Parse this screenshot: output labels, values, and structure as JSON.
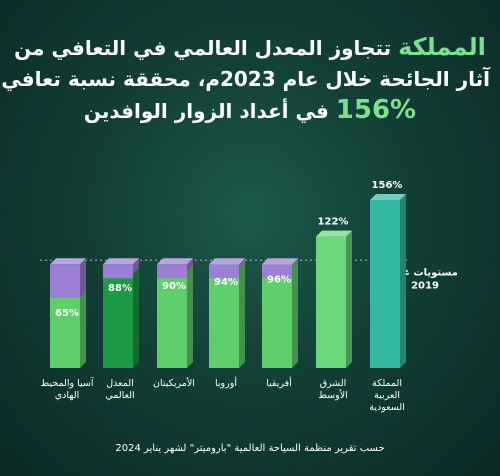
{
  "headline": {
    "line1_highlight": "المملكة",
    "line1_rest": " تتجاوز المعدل العالمي في التعافي من",
    "line2": "آثار الجائحة خلال عام 2023م، محققة نسبة تعافي",
    "line3_number": "156%",
    "line3_rest": " في أعداد الزوار الوافدين"
  },
  "footer": {
    "source": "حسب تقرير منظمة السياحة العالمية \"باروميتر\" لشهر يناير 2024"
  },
  "chart_data": {
    "type": "bar",
    "categories": [
      "المملكة العربية السعودية",
      "الشرق الأوسط",
      "أفريقيا",
      "أوروبا",
      "الأمريكيتان",
      "المعدل العالمي",
      "آسيا والمحيط الهادي"
    ],
    "category_lines": [
      [
        "المملكة",
        "العربية",
        "السعودية"
      ],
      [
        "الشرق",
        "الأوسط"
      ],
      [
        "أفريقيا"
      ],
      [
        "أوروبا"
      ],
      [
        "الأمريكيتان"
      ],
      [
        "المعدل",
        "العالمي"
      ],
      [
        "آسيا والمحيط",
        "الهادي"
      ]
    ],
    "values": [
      156,
      122,
      96,
      94,
      90,
      88,
      65
    ],
    "labels": [
      "156%",
      "122%",
      "96%",
      "94%",
      "90%",
      "88%",
      "65%"
    ],
    "reference_line": {
      "value": 100,
      "label_line1": "مستويات عام",
      "label_line2": "2019"
    },
    "ylim": [
      0,
      156
    ],
    "colors": {
      "bar_saudi": "#36b9a3",
      "bar_middle_east": "#6ad77a",
      "bar_green": "#5fcf6e",
      "bar_world": "#1d9a43",
      "cap_purple": "#9b7fd4"
    }
  }
}
